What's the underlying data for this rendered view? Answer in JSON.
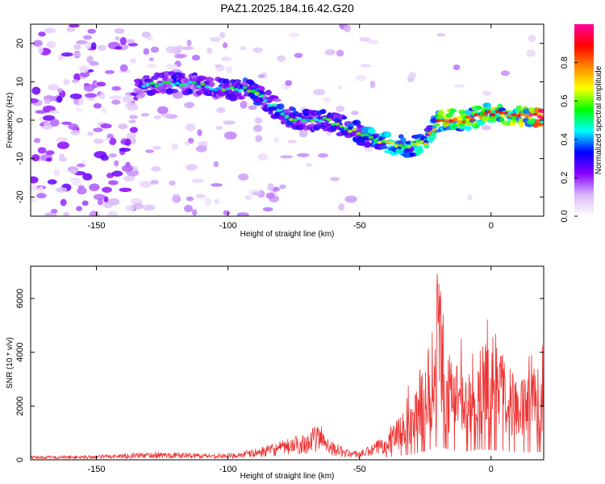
{
  "title": "PAZ1.2025.184.16.42.G20",
  "chart_data": [
    {
      "type": "heatmap",
      "xlabel": "Height of straight line (km)",
      "ylabel": "Frequency (Hz)",
      "xlim": [
        -175,
        20
      ],
      "ylim": [
        -25,
        25
      ],
      "xticks": [
        -150,
        -100,
        -50,
        0
      ],
      "yticks": [
        -20,
        -10,
        0,
        10,
        20
      ],
      "colorbar": {
        "label": "Normalized spectral amplitude",
        "range": [
          0,
          1
        ],
        "ticks": [
          "0.0",
          "0.2",
          "0.4",
          "0.6",
          "0.8"
        ],
        "colors": [
          "#ffffff",
          "#d8b8f8",
          "#8800ff",
          "#0000ff",
          "#00ffff",
          "#00ff00",
          "#ffff00",
          "#ff8800",
          "#ff0000",
          "#ff00a0"
        ]
      },
      "ridge": {
        "x": [
          -135,
          -125,
          -110,
          -100,
          -92,
          -85,
          -78,
          -70,
          -62,
          -55,
          -48,
          -40,
          -32,
          -25,
          -20,
          -15,
          -10,
          0,
          10,
          20
        ],
        "y": [
          8,
          10,
          9,
          8,
          8,
          5,
          1,
          0,
          0,
          -2,
          -4,
          -6,
          -7,
          -6,
          0,
          0,
          0,
          2,
          1,
          1
        ],
        "amplitude": [
          0.25,
          0.3,
          0.3,
          0.3,
          0.35,
          0.3,
          0.35,
          0.3,
          0.35,
          0.35,
          0.4,
          0.45,
          0.45,
          0.5,
          0.6,
          0.7,
          0.6,
          0.7,
          0.6,
          0.9
        ]
      }
    },
    {
      "type": "line",
      "xlabel": "Height of straight line (km)",
      "ylabel": "SNR (10 * v/v)",
      "xlim": [
        -175,
        20
      ],
      "ylim": [
        0,
        7200
      ],
      "xticks": [
        -150,
        -100,
        -50,
        0
      ],
      "yticks": [
        0,
        2000,
        4000,
        6000
      ],
      "color": "#ee3333",
      "envelope": {
        "x": [
          -175,
          -150,
          -130,
          -100,
          -90,
          -80,
          -70,
          -65,
          -60,
          -55,
          -50,
          -45,
          -40,
          -35,
          -30,
          -25,
          -20,
          -15,
          -10,
          -5,
          0,
          5,
          10,
          15,
          20
        ],
        "y": [
          120,
          150,
          250,
          200,
          350,
          600,
          900,
          1200,
          600,
          350,
          300,
          500,
          900,
          1400,
          2000,
          3200,
          5000,
          3500,
          3000,
          3800,
          3700,
          3300,
          2700,
          2800,
          2900
        ]
      }
    }
  ]
}
